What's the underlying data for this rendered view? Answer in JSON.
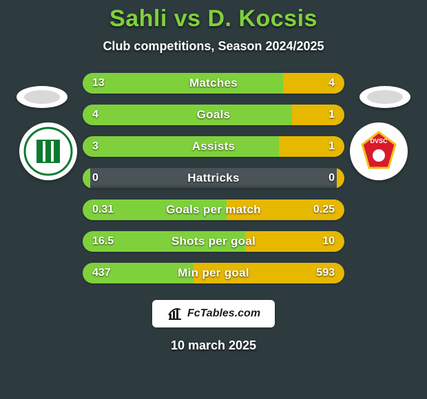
{
  "background_color": "#2d3a3e",
  "title": "Sahli vs D. Kocsis",
  "title_color": "#7fd13b",
  "subtitle": "Club competitions, Season 2024/2025",
  "subtitle_color": "#ffffff",
  "left_color": "#7fd13b",
  "right_color": "#e6b800",
  "track_color": "#4a5357",
  "bars": [
    {
      "label": "Matches",
      "left": "13",
      "right": "4",
      "left_frac": 0.765,
      "right_frac": 0.235
    },
    {
      "label": "Goals",
      "left": "4",
      "right": "1",
      "left_frac": 0.8,
      "right_frac": 0.2
    },
    {
      "label": "Assists",
      "left": "3",
      "right": "1",
      "left_frac": 0.75,
      "right_frac": 0.25
    },
    {
      "label": "Hattricks",
      "left": "0",
      "right": "0",
      "left_frac": 0.03,
      "right_frac": 0.03
    },
    {
      "label": "Goals per match",
      "left": "0.31",
      "right": "0.25",
      "left_frac": 0.55,
      "right_frac": 0.45
    },
    {
      "label": "Shots per goal",
      "left": "16.5",
      "right": "10",
      "left_frac": 0.62,
      "right_frac": 0.38
    },
    {
      "label": "Min per goal",
      "left": "437",
      "right": "593",
      "left_frac": 0.424,
      "right_frac": 0.576
    }
  ],
  "avatar_placeholder_bg": "#ffffff",
  "club_left": {
    "name": "Győri ETO",
    "primary": "#0a7a2f",
    "secondary": "#ffffff"
  },
  "club_right": {
    "name": "DVSC",
    "primary": "#d91a2a",
    "secondary": "#f2c21a"
  },
  "watermark_text": "FcTables.com",
  "date_text": "10 march 2025"
}
